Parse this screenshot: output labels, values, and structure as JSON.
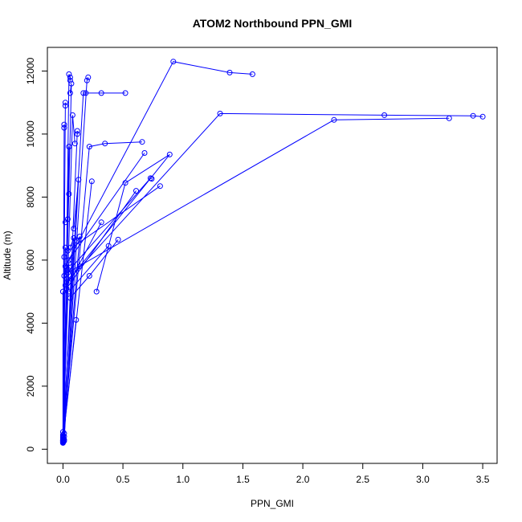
{
  "chart_data": {
    "type": "line",
    "title": "ATOM2 Northbound PPN_GMI",
    "xlabel": "PPN_GMI",
    "ylabel": "Altitude (m)",
    "xlim": [
      -0.13,
      3.62
    ],
    "ylim": [
      -450,
      12750
    ],
    "xticks": [
      0.0,
      0.5,
      1.0,
      1.5,
      2.0,
      2.5,
      3.0,
      3.5
    ],
    "xtick_labels": [
      "0.0",
      "0.5",
      "1.0",
      "1.5",
      "2.0",
      "2.5",
      "3.0",
      "3.5"
    ],
    "yticks": [
      0,
      2000,
      4000,
      6000,
      8000,
      10000,
      12000
    ],
    "ytick_labels": [
      "0",
      "2000",
      "4000",
      "6000",
      "8000",
      "10000",
      "12000"
    ],
    "grid": false,
    "legend": "none",
    "line_color": "#0000ff",
    "marker": "open-circle",
    "series": [
      {
        "x": [
          0.0,
          0.01,
          0.01
        ],
        "y": [
          200,
          10200,
          10300
        ]
      },
      {
        "x": [
          0.0,
          0.02,
          0.02
        ],
        "y": [
          250,
          11000,
          10900
        ]
      },
      {
        "x": [
          0.01,
          0.05,
          0.06,
          0.06
        ],
        "y": [
          300,
          11900,
          11800,
          11700
        ]
      },
      {
        "x": [
          0.0,
          0.07,
          0.06
        ],
        "y": [
          350,
          11600,
          11300
        ]
      },
      {
        "x": [
          0.01,
          0.2,
          0.21
        ],
        "y": [
          400,
          11700,
          11800
        ]
      },
      {
        "x": [
          0.0,
          0.17,
          0.19,
          0.32,
          0.52
        ],
        "y": [
          450,
          11300,
          11300,
          11300,
          11300
        ]
      },
      {
        "x": [
          0.0,
          0.08,
          0.1
        ],
        "y": [
          220,
          10600,
          9700
        ]
      },
      {
        "x": [
          0.01,
          0.12,
          0.12
        ],
        "y": [
          500,
          10100,
          10000
        ]
      },
      {
        "x": [
          0.0,
          0.22,
          0.35,
          0.66
        ],
        "y": [
          300,
          9600,
          9700,
          9750
        ]
      },
      {
        "x": [
          0.01,
          0.13,
          0.09
        ],
        "y": [
          260,
          8550,
          7000
        ]
      },
      {
        "x": [
          0.0,
          0.24
        ],
        "y": [
          280,
          8500
        ]
      },
      {
        "x": [
          0.0,
          0.05,
          0.05
        ],
        "y": [
          240,
          9600,
          8100
        ]
      },
      {
        "x": [
          0.0,
          0.04,
          0.02
        ],
        "y": [
          210,
          7300,
          7200
        ]
      },
      {
        "x": [
          0.0,
          0.09,
          0.06
        ],
        "y": [
          230,
          6700,
          6400
        ]
      },
      {
        "x": [
          0.0,
          0.14,
          0.12
        ],
        "y": [
          320,
          6750,
          6600
        ]
      },
      {
        "x": [
          0.0,
          0.02
        ],
        "y": [
          380,
          6400
        ]
      },
      {
        "x": [
          0.0,
          0.01
        ],
        "y": [
          410,
          6100
        ]
      },
      {
        "x": [
          0.0,
          0.05,
          0.04
        ],
        "y": [
          270,
          5900,
          5700
        ]
      },
      {
        "x": [
          0.0,
          0.11
        ],
        "y": [
          290,
          4100
        ]
      },
      {
        "x": [
          0.0,
          0.0
        ],
        "y": [
          550,
          5000
        ]
      },
      {
        "x": [
          0.0,
          0.03
        ],
        "y": [
          260,
          5400
        ]
      },
      {
        "x": [
          0.02,
          0.14,
          0.89,
          0.52,
          0.28
        ],
        "y": [
          5200,
          5800,
          9350,
          8450,
          5000
        ]
      },
      {
        "x": [
          0.01,
          0.73,
          0.74
        ],
        "y": [
          5500,
          8600,
          8580
        ]
      },
      {
        "x": [
          0.02,
          0.92,
          1.39,
          1.58
        ],
        "y": [
          5800,
          12300,
          11950,
          11900
        ]
      },
      {
        "x": [
          0.03,
          1.31,
          2.68,
          3.42,
          3.5
        ],
        "y": [
          5300,
          10650,
          10600,
          10580,
          10550
        ]
      },
      {
        "x": [
          0.04,
          2.26,
          3.22
        ],
        "y": [
          5600,
          10450,
          10500
        ]
      },
      {
        "x": [
          0.05,
          0.68
        ],
        "y": [
          6000,
          9400
        ]
      },
      {
        "x": [
          0.04,
          0.81
        ],
        "y": [
          6300,
          8350
        ]
      },
      {
        "x": [
          0.03,
          0.61
        ],
        "y": [
          5100,
          8200
        ]
      },
      {
        "x": [
          0.06,
          0.22,
          0.46
        ],
        "y": [
          4800,
          5500,
          6650
        ]
      },
      {
        "x": [
          0.05,
          0.38
        ],
        "y": [
          5000,
          6450
        ]
      },
      {
        "x": [
          0.07,
          0.32
        ],
        "y": [
          5400,
          7200
        ]
      }
    ]
  }
}
